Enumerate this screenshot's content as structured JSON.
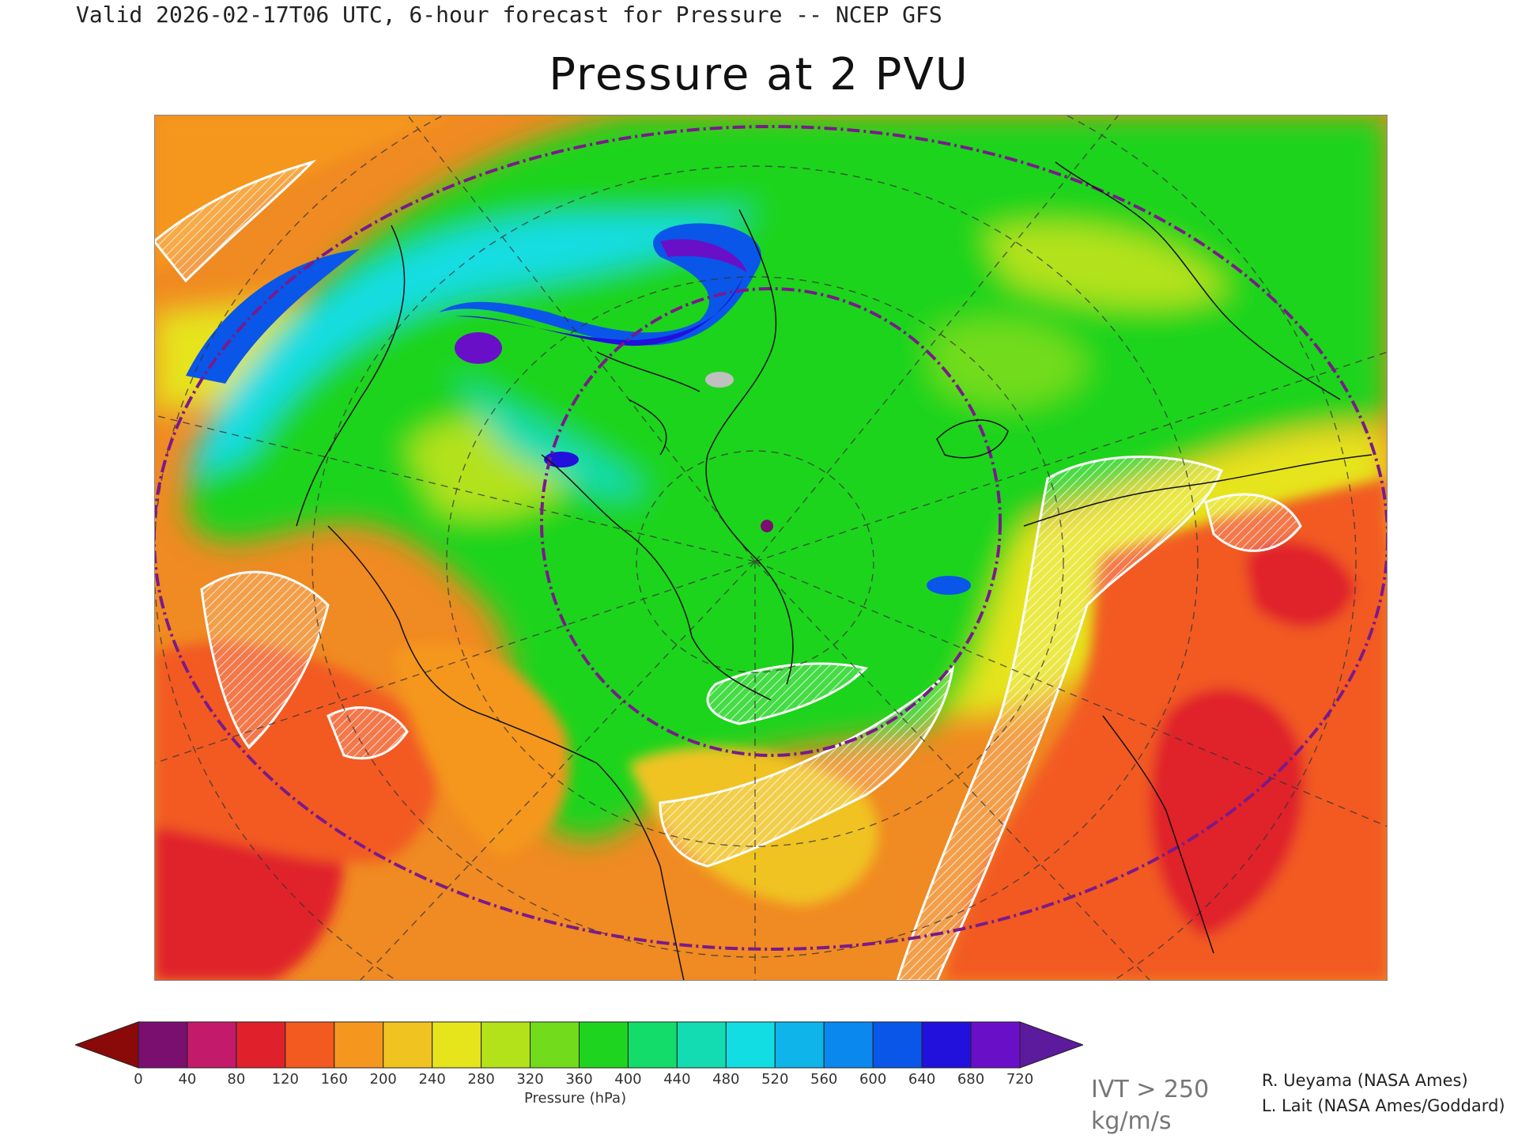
{
  "header": {
    "subtitle": "Valid 2026-02-17T06 UTC, 6-hour forecast for Pressure -- NCEP GFS"
  },
  "title": "Pressure at 2 PVU",
  "map": {
    "projection": "polar stereographic",
    "field": "pressure on 2 PVU surface",
    "overlay": "IVT > 250 kg/m/s (white hatched contours)",
    "region": "North America, North Atlantic, Arctic"
  },
  "colorbar": {
    "label": "Pressure (hPa)",
    "ticks": [
      "0",
      "40",
      "80",
      "120",
      "160",
      "200",
      "240",
      "280",
      "320",
      "360",
      "400",
      "440",
      "480",
      "520",
      "560",
      "600",
      "640",
      "680",
      "720"
    ],
    "colors": [
      "#7a0f6f",
      "#c41a6b",
      "#e0212b",
      "#f25a20",
      "#f5971f",
      "#f0c320",
      "#e6e41b",
      "#b3e21a",
      "#72dc1c",
      "#1fd41e",
      "#14dc6a",
      "#13dcb2",
      "#12dde3",
      "#0eb4ea",
      "#0a88ee",
      "#0a56e8",
      "#2210dc",
      "#6a0fc8"
    ],
    "under_color": "#8a0a0a",
    "over_color": "#5c1a9c"
  },
  "legend_overlay": {
    "line1": "IVT > 250",
    "line2": "kg/m/s"
  },
  "credits": {
    "line1": "R. Ueyama (NASA Ames)",
    "line2": "L. Lait (NASA Ames/Goddard)"
  }
}
